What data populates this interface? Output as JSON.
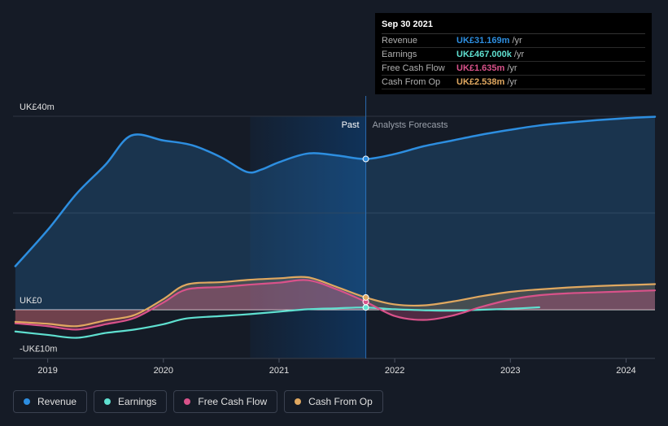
{
  "chart_data": {
    "type": "area",
    "x_ticks": [
      "2019",
      "2020",
      "2021",
      "2022",
      "2023",
      "2024"
    ],
    "y_labels": [
      {
        "label": "UK£40m",
        "value": 40
      },
      {
        "label": "UK£0",
        "value": 0
      },
      {
        "label": "-UK£10m",
        "value": -10
      }
    ],
    "ylim": [
      -10,
      40
    ],
    "xlim": [
      2018.7,
      2024.25
    ],
    "past_label": "Past",
    "forecast_label": "Analysts Forecasts",
    "divider_x": 2021.75,
    "shade_start_x": 2020.75,
    "series": [
      {
        "name": "Revenue",
        "color": "#2d8ee0",
        "fill": true,
        "points": [
          [
            2018.72,
            9
          ],
          [
            2019.0,
            16.5
          ],
          [
            2019.25,
            24
          ],
          [
            2019.5,
            30
          ],
          [
            2019.72,
            36
          ],
          [
            2020.0,
            35
          ],
          [
            2020.25,
            34
          ],
          [
            2020.5,
            31.5
          ],
          [
            2020.72,
            28.5
          ],
          [
            2020.85,
            29
          ],
          [
            2021.0,
            30.5
          ],
          [
            2021.25,
            32.3
          ],
          [
            2021.5,
            31.9
          ],
          [
            2021.75,
            31.169
          ],
          [
            2022.0,
            32.2
          ],
          [
            2022.25,
            33.8
          ],
          [
            2022.5,
            35
          ],
          [
            2022.75,
            36.2
          ],
          [
            2023.0,
            37.2
          ],
          [
            2023.25,
            38.1
          ],
          [
            2023.5,
            38.7
          ],
          [
            2023.75,
            39.2
          ],
          [
            2024.0,
            39.6
          ],
          [
            2024.25,
            39.9
          ]
        ]
      },
      {
        "name": "Earnings",
        "color": "#5fe0d0",
        "fill": false,
        "points": [
          [
            2018.72,
            -4.5
          ],
          [
            2019.0,
            -5.2
          ],
          [
            2019.25,
            -5.8
          ],
          [
            2019.5,
            -4.8
          ],
          [
            2019.75,
            -4.1
          ],
          [
            2020.0,
            -3
          ],
          [
            2020.2,
            -1.8
          ],
          [
            2020.5,
            -1.3
          ],
          [
            2020.75,
            -0.9
          ],
          [
            2021.0,
            -0.4
          ],
          [
            2021.25,
            0.1
          ],
          [
            2021.5,
            0.3
          ],
          [
            2021.75,
            0.467
          ],
          [
            2022.0,
            0.1
          ],
          [
            2022.25,
            -0.1
          ],
          [
            2022.5,
            -0.2
          ],
          [
            2022.75,
            0.0
          ],
          [
            2023.0,
            0.2
          ],
          [
            2023.25,
            0.5
          ]
        ]
      },
      {
        "name": "Free Cash Flow",
        "color": "#d9528a",
        "fill": true,
        "points": [
          [
            2018.72,
            -2.8
          ],
          [
            2019.0,
            -3.4
          ],
          [
            2019.25,
            -4.1
          ],
          [
            2019.5,
            -3
          ],
          [
            2019.75,
            -1.7
          ],
          [
            2020.0,
            1.5
          ],
          [
            2020.2,
            4.2
          ],
          [
            2020.5,
            4.7
          ],
          [
            2020.75,
            5.2
          ],
          [
            2021.0,
            5.6
          ],
          [
            2021.25,
            6.1
          ],
          [
            2021.5,
            4.2
          ],
          [
            2021.75,
            1.635
          ],
          [
            2022.0,
            -1.3
          ],
          [
            2022.25,
            -2.1
          ],
          [
            2022.5,
            -1.2
          ],
          [
            2022.75,
            0.6
          ],
          [
            2023.0,
            2.1
          ],
          [
            2023.25,
            3.0
          ],
          [
            2023.5,
            3.4
          ],
          [
            2023.75,
            3.6
          ],
          [
            2024.0,
            3.8
          ],
          [
            2024.25,
            4.0
          ]
        ]
      },
      {
        "name": "Cash From Op",
        "color": "#e0a860",
        "fill": true,
        "points": [
          [
            2018.72,
            -2.5
          ],
          [
            2019.0,
            -2.9
          ],
          [
            2019.25,
            -3.4
          ],
          [
            2019.5,
            -2.2
          ],
          [
            2019.75,
            -1.1
          ],
          [
            2020.0,
            2.2
          ],
          [
            2020.2,
            5.2
          ],
          [
            2020.5,
            5.7
          ],
          [
            2020.75,
            6.2
          ],
          [
            2021.0,
            6.5
          ],
          [
            2021.25,
            6.7
          ],
          [
            2021.5,
            4.7
          ],
          [
            2021.75,
            2.538
          ],
          [
            2022.0,
            1.1
          ],
          [
            2022.25,
            0.9
          ],
          [
            2022.5,
            1.7
          ],
          [
            2022.75,
            2.8
          ],
          [
            2023.0,
            3.7
          ],
          [
            2023.25,
            4.2
          ],
          [
            2023.5,
            4.6
          ],
          [
            2023.75,
            4.9
          ],
          [
            2024.0,
            5.1
          ],
          [
            2024.25,
            5.3
          ]
        ]
      }
    ],
    "marker_x": 2021.75
  },
  "tooltip": {
    "date": "Sep 30 2021",
    "rows": [
      {
        "label": "Revenue",
        "value": "UK£31.169m",
        "unit": "/yr",
        "color": "#2d8ee0"
      },
      {
        "label": "Earnings",
        "value": "UK£467.000k",
        "unit": "/yr",
        "color": "#5fe0d0"
      },
      {
        "label": "Free Cash Flow",
        "value": "UK£1.635m",
        "unit": "/yr",
        "color": "#d9528a"
      },
      {
        "label": "Cash From Op",
        "value": "UK£2.538m",
        "unit": "/yr",
        "color": "#e0a860"
      }
    ]
  },
  "legend": [
    {
      "label": "Revenue",
      "color": "#2d8ee0"
    },
    {
      "label": "Earnings",
      "color": "#5fe0d0"
    },
    {
      "label": "Free Cash Flow",
      "color": "#d9528a"
    },
    {
      "label": "Cash From Op",
      "color": "#e0a860"
    }
  ]
}
